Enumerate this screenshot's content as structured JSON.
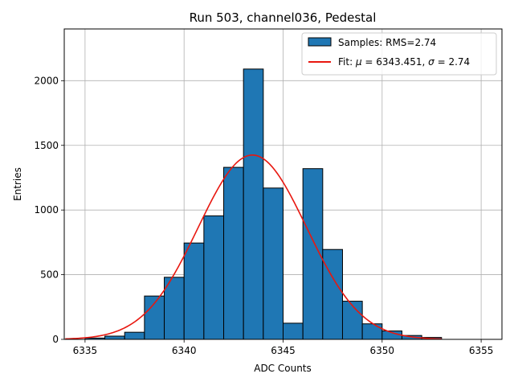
{
  "chart_data": {
    "type": "bar",
    "title": "Run 503, channel036, Pedestal",
    "xlabel": "ADC Counts",
    "ylabel": "Entries",
    "xlim": [
      6333.95,
      6356.05
    ],
    "ylim": [
      0,
      2400
    ],
    "grid": true,
    "legend_position": "top-right",
    "x_ticks": [
      6335,
      6340,
      6345,
      6350,
      6355
    ],
    "y_ticks": [
      0,
      500,
      1000,
      1500,
      2000
    ],
    "histogram": {
      "name": "Samples: RMS=2.74",
      "bin_edges": [
        6335,
        6336,
        6337,
        6338,
        6339,
        6340,
        6341,
        6342,
        6343,
        6344,
        6345,
        6346,
        6347,
        6348,
        6349,
        6350,
        6351,
        6352,
        6353
      ],
      "counts": [
        10,
        25,
        55,
        335,
        480,
        745,
        955,
        1330,
        2090,
        1170,
        125,
        1320,
        695,
        295,
        120,
        65,
        30,
        15
      ],
      "color": "#1f77b4",
      "edge_color": "#000000"
    },
    "fit": {
      "name_prefix": "Fit: ",
      "name_mu": "μ",
      "name_mid": " = 6343.451, ",
      "name_sigma": "σ",
      "name_suffix": " = 2.74",
      "mu": 6343.451,
      "sigma": 2.74,
      "amplitude": 1425,
      "x_range": [
        6334,
        6353
      ],
      "color": "#e8170f"
    }
  }
}
